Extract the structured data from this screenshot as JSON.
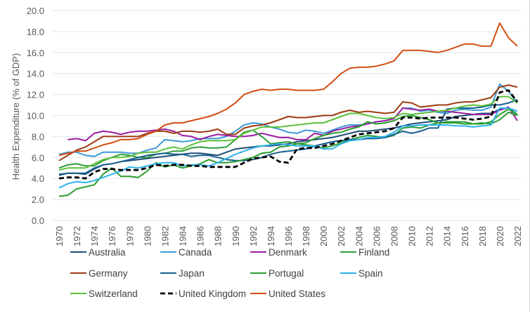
{
  "chart_data": {
    "type": "line",
    "title": "",
    "xlabel": "",
    "ylabel": "Health Expenditure (% of GDP)",
    "ylim": [
      0,
      20
    ],
    "yticks": [
      "0.0",
      "2.0",
      "4.0",
      "6.0",
      "8.0",
      "10.0",
      "12.0",
      "14.0",
      "16.0",
      "18.0",
      "20.0"
    ],
    "x": [
      1970,
      1971,
      1972,
      1973,
      1974,
      1975,
      1976,
      1977,
      1978,
      1979,
      1980,
      1981,
      1982,
      1983,
      1984,
      1985,
      1986,
      1987,
      1988,
      1989,
      1990,
      1991,
      1992,
      1993,
      1994,
      1995,
      1996,
      1997,
      1998,
      1999,
      2000,
      2001,
      2002,
      2003,
      2004,
      2005,
      2006,
      2007,
      2008,
      2009,
      2010,
      2011,
      2012,
      2013,
      2014,
      2015,
      2016,
      2017,
      2018,
      2019,
      2020,
      2021,
      2022
    ],
    "xticks": [
      "1970",
      "1972",
      "1974",
      "1976",
      "1978",
      "1980",
      "1982",
      "1984",
      "1986",
      "1988",
      "1990",
      "1992",
      "1994",
      "1996",
      "1998",
      "2000",
      "2002",
      "2004",
      "2006",
      "2008",
      "2010",
      "2012",
      "2014",
      "2016",
      "2018",
      "2020",
      "2022"
    ],
    "grid": true,
    "legend_position": "bottom",
    "series": [
      {
        "name": "Australia",
        "color": "#1f4e79",
        "dash": false,
        "values": [
          4.3,
          4.5,
          4.5,
          4.4,
          4.9,
          5.3,
          5.4,
          5.6,
          5.7,
          5.8,
          5.9,
          6.0,
          6.1,
          6.2,
          6.3,
          6.4,
          6.4,
          6.3,
          6.2,
          6.5,
          6.8,
          6.9,
          7.0,
          7.1,
          7.1,
          7.2,
          7.3,
          7.5,
          7.6,
          7.7,
          7.8,
          7.9,
          8.1,
          8.3,
          8.5,
          8.5,
          8.6,
          8.7,
          8.8,
          9.0,
          9.2,
          9.3,
          9.4,
          9.5,
          9.6,
          9.9,
          10.0,
          10.1,
          10.2,
          10.2,
          10.6,
          10.7,
          10.1
        ]
      },
      {
        "name": "Canada",
        "color": "#3f9bd6",
        "dash": false,
        "values": [
          6.3,
          6.5,
          6.5,
          6.2,
          6.1,
          6.5,
          6.5,
          6.5,
          6.4,
          6.4,
          6.7,
          6.9,
          7.7,
          7.6,
          7.5,
          7.6,
          7.8,
          7.8,
          7.8,
          8.0,
          8.5,
          9.1,
          9.3,
          9.2,
          8.9,
          8.7,
          8.4,
          8.3,
          8.6,
          8.5,
          8.3,
          8.6,
          8.9,
          9.1,
          9.1,
          9.2,
          9.4,
          9.5,
          9.7,
          10.7,
          10.7,
          10.4,
          10.5,
          10.3,
          10.2,
          10.5,
          10.6,
          10.5,
          10.5,
          10.8,
          13.0,
          12.3,
          11.2
        ]
      },
      {
        "name": "Denmark",
        "color": "#9b1fa3",
        "dash": false,
        "values": [
          null,
          7.7,
          7.8,
          7.6,
          8.3,
          8.5,
          8.4,
          8.2,
          8.4,
          8.5,
          8.5,
          8.6,
          8.7,
          8.5,
          8.1,
          8.0,
          7.7,
          8.0,
          8.2,
          8.1,
          8.0,
          8.0,
          8.1,
          8.3,
          8.1,
          7.9,
          7.9,
          7.7,
          7.7,
          8.3,
          8.1,
          8.5,
          8.7,
          8.9,
          9.0,
          9.2,
          9.4,
          9.5,
          9.7,
          10.7,
          10.6,
          10.5,
          10.6,
          10.4,
          10.4,
          10.3,
          10.2,
          10.1,
          10.1,
          10.1,
          10.5,
          10.8,
          9.5
        ]
      },
      {
        "name": "Finland",
        "color": "#2e9e38",
        "dash": false,
        "values": [
          5.0,
          5.3,
          5.4,
          5.2,
          5.2,
          5.7,
          6.0,
          6.3,
          6.2,
          6.0,
          6.0,
          6.3,
          6.4,
          6.6,
          6.6,
          6.9,
          7.0,
          6.9,
          6.9,
          7.0,
          7.7,
          8.4,
          8.6,
          8.0,
          7.3,
          7.4,
          7.5,
          7.3,
          7.2,
          7.1,
          6.9,
          7.1,
          7.4,
          7.7,
          7.9,
          8.1,
          8.0,
          7.9,
          8.1,
          8.8,
          8.9,
          8.8,
          9.1,
          9.3,
          9.4,
          9.4,
          9.4,
          9.2,
          9.3,
          9.2,
          9.6,
          10.3,
          10.0
        ]
      },
      {
        "name": "Germany",
        "color": "#9c3a12",
        "dash": false,
        "values": [
          5.7,
          6.2,
          6.7,
          7.0,
          7.5,
          8.0,
          8.0,
          8.0,
          8.0,
          8.0,
          8.3,
          8.5,
          8.5,
          8.3,
          8.5,
          8.5,
          8.4,
          8.5,
          8.7,
          8.2,
          8.2,
          8.8,
          9.0,
          9.1,
          9.3,
          9.6,
          9.9,
          9.8,
          9.8,
          9.9,
          10.0,
          10.0,
          10.3,
          10.5,
          10.3,
          10.4,
          10.3,
          10.2,
          10.3,
          11.3,
          11.2,
          10.8,
          10.9,
          11.0,
          11.0,
          11.2,
          11.3,
          11.3,
          11.5,
          11.7,
          12.7,
          12.9,
          12.7
        ]
      },
      {
        "name": "Japan",
        "color": "#17608f",
        "dash": false,
        "values": [
          4.4,
          4.5,
          4.5,
          4.5,
          5.0,
          5.3,
          5.4,
          5.6,
          5.8,
          6.0,
          6.2,
          6.3,
          6.4,
          6.3,
          6.3,
          6.1,
          6.2,
          6.2,
          6.0,
          5.8,
          5.7,
          5.7,
          5.8,
          6.0,
          6.3,
          6.5,
          6.6,
          6.7,
          6.8,
          7.1,
          7.3,
          7.5,
          7.6,
          7.7,
          7.7,
          7.8,
          7.8,
          7.9,
          8.2,
          8.5,
          8.3,
          8.5,
          8.8,
          8.8,
          10.6,
          10.7,
          10.7,
          10.7,
          10.8,
          11.0,
          11.0,
          11.2,
          11.5
        ]
      },
      {
        "name": "Portugal",
        "color": "#2b9d2f",
        "dash": false,
        "values": [
          2.3,
          2.4,
          3.0,
          3.2,
          3.4,
          4.4,
          5.0,
          4.2,
          4.2,
          4.1,
          4.7,
          5.5,
          5.1,
          5.3,
          5.0,
          5.2,
          5.4,
          5.8,
          5.5,
          5.5,
          5.6,
          5.8,
          6.0,
          6.4,
          6.5,
          7.0,
          7.1,
          7.3,
          7.4,
          7.8,
          8.1,
          8.3,
          8.4,
          8.7,
          8.9,
          9.4,
          9.2,
          9.3,
          9.5,
          9.9,
          10.0,
          9.8,
          9.6,
          9.3,
          9.3,
          9.3,
          9.2,
          9.2,
          9.2,
          9.4,
          10.1,
          10.6,
          10.1
        ]
      },
      {
        "name": "Spain",
        "color": "#2db3ea",
        "dash": false,
        "values": [
          3.1,
          3.5,
          3.7,
          3.6,
          3.8,
          4.1,
          4.4,
          4.7,
          5.1,
          5.0,
          5.2,
          5.4,
          5.5,
          5.5,
          5.2,
          5.3,
          5.3,
          5.2,
          5.5,
          5.9,
          6.3,
          6.6,
          6.9,
          7.1,
          7.2,
          7.3,
          7.2,
          7.1,
          7.1,
          7.1,
          6.8,
          6.8,
          7.3,
          7.6,
          7.7,
          7.9,
          7.9,
          8.0,
          8.4,
          9.0,
          9.0,
          9.1,
          9.1,
          9.1,
          9.1,
          9.0,
          9.0,
          8.9,
          9.0,
          9.1,
          10.7,
          10.7,
          10.4
        ]
      },
      {
        "name": "Switzerland",
        "color": "#5bc13a",
        "dash": false,
        "values": [
          4.8,
          5.0,
          5.0,
          5.0,
          5.4,
          5.8,
          6.0,
          6.0,
          6.1,
          6.4,
          6.5,
          6.5,
          6.8,
          7.0,
          6.8,
          7.2,
          7.5,
          7.6,
          7.6,
          7.6,
          7.7,
          8.3,
          8.6,
          8.9,
          8.9,
          8.9,
          9.0,
          9.1,
          9.2,
          9.3,
          9.3,
          9.6,
          9.9,
          10.2,
          10.2,
          10.0,
          9.8,
          9.7,
          9.8,
          10.2,
          10.1,
          10.2,
          10.3,
          10.4,
          10.5,
          10.7,
          10.9,
          11.0,
          10.9,
          11.1,
          11.8,
          11.8,
          11.2
        ]
      },
      {
        "name": "United Kingdom",
        "color": "#000000",
        "dash": true,
        "values": [
          4.0,
          4.1,
          4.1,
          4.0,
          4.6,
          4.9,
          4.9,
          4.8,
          4.8,
          4.8,
          5.0,
          5.3,
          5.2,
          5.3,
          5.3,
          5.2,
          5.2,
          5.1,
          5.1,
          5.1,
          5.1,
          5.5,
          5.9,
          6.0,
          6.1,
          5.6,
          5.5,
          6.8,
          6.9,
          6.9,
          7.1,
          7.3,
          7.6,
          7.9,
          8.2,
          8.3,
          8.4,
          8.5,
          8.8,
          9.8,
          9.8,
          9.7,
          9.8,
          9.8,
          9.8,
          9.8,
          9.7,
          9.6,
          9.7,
          9.9,
          12.2,
          12.4,
          11.3
        ]
      },
      {
        "name": "United States",
        "color": "#d24d13",
        "dash": false,
        "values": [
          6.2,
          6.4,
          6.6,
          6.6,
          6.9,
          7.2,
          7.4,
          7.7,
          7.7,
          7.8,
          8.2,
          8.5,
          9.1,
          9.3,
          9.3,
          9.5,
          9.7,
          9.9,
          10.2,
          10.6,
          11.2,
          12.0,
          12.3,
          12.5,
          12.4,
          12.5,
          12.5,
          12.4,
          12.4,
          12.4,
          12.5,
          13.2,
          14.0,
          14.5,
          14.6,
          14.6,
          14.7,
          14.9,
          15.2,
          16.2,
          16.2,
          16.2,
          16.1,
          16.0,
          16.2,
          16.5,
          16.8,
          16.8,
          16.6,
          16.6,
          18.8,
          17.4,
          16.6
        ]
      }
    ]
  }
}
